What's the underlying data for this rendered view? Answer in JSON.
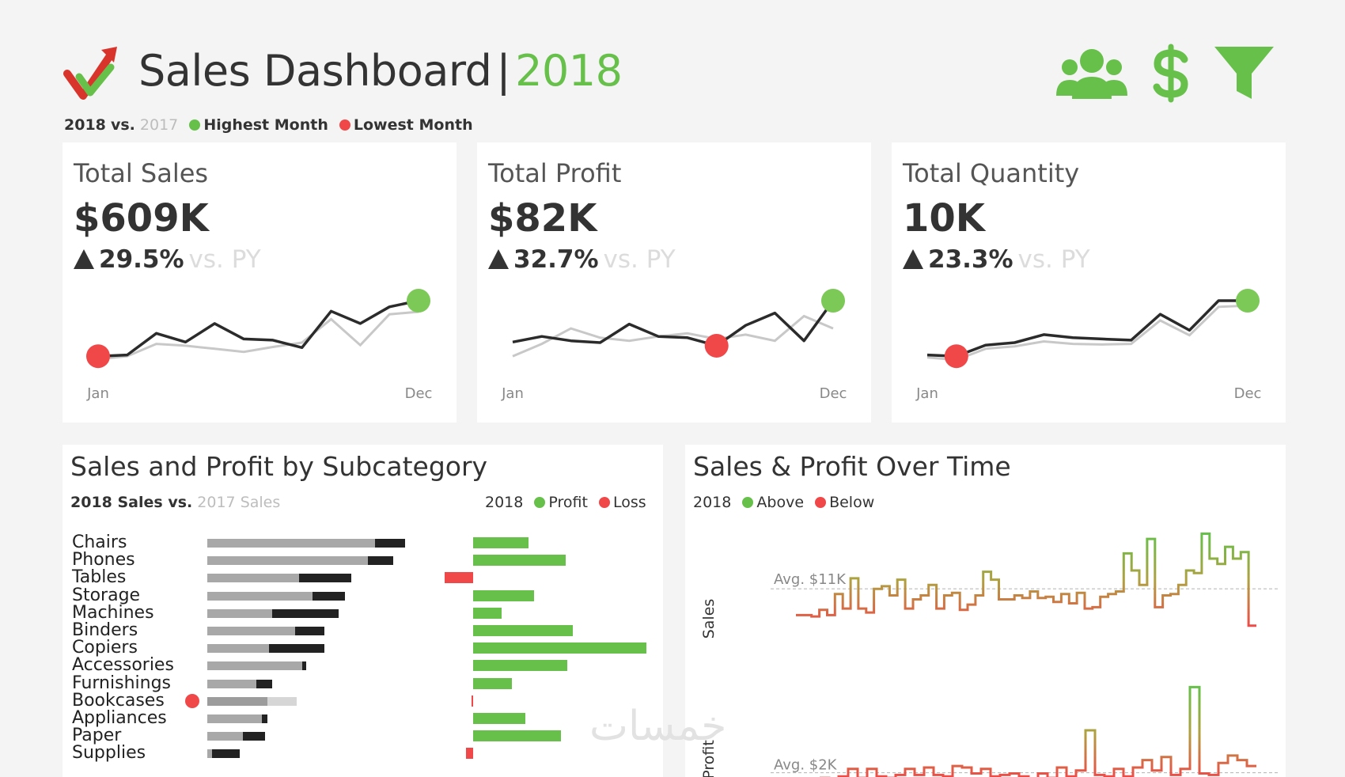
{
  "header": {
    "title": "Sales Dashboard",
    "separator": "|",
    "year": "2018",
    "logo_icon": "checkmark-arrow-logo",
    "icons": [
      "people-icon",
      "dollar-icon",
      "filter-icon"
    ]
  },
  "legend_top": {
    "current": "2018",
    "vs": "vs.",
    "previous": "2017",
    "highest": "Highest Month",
    "lowest": "Lowest Month"
  },
  "kpis": [
    {
      "title": "Total Sales",
      "value": "$609K",
      "change": "29.5%",
      "vs_label": "vs. PY",
      "axis_start": "Jan",
      "axis_end": "Dec",
      "current": [
        0.1,
        0.12,
        0.47,
        0.33,
        0.63,
        0.38,
        0.36,
        0.24,
        0.83,
        0.63,
        0.9,
        1.0
      ],
      "previous": [
        0.05,
        0.1,
        0.3,
        0.27,
        0.22,
        0.17,
        0.25,
        0.32,
        0.7,
        0.28,
        0.78,
        0.82
      ],
      "high_index": 11,
      "low_index": 0
    },
    {
      "title": "Total Profit",
      "value": "$82K",
      "change": "32.7%",
      "vs_label": "vs. PY",
      "axis_start": "Jan",
      "axis_end": "Dec",
      "current": [
        0.33,
        0.42,
        0.35,
        0.32,
        0.62,
        0.42,
        0.4,
        0.27,
        0.6,
        0.8,
        0.35,
        1.0
      ],
      "previous": [
        0.1,
        0.3,
        0.55,
        0.4,
        0.35,
        0.42,
        0.47,
        0.38,
        0.45,
        0.35,
        0.75,
        0.55
      ],
      "high_index": 11,
      "low_index": 7
    },
    {
      "title": "Total Quantity",
      "value": "10K",
      "change": "23.3%",
      "vs_label": "vs. PY",
      "axis_start": "Jan",
      "axis_end": "Dec",
      "current": [
        0.12,
        0.1,
        0.28,
        0.32,
        0.45,
        0.4,
        0.38,
        0.36,
        0.78,
        0.52,
        1.0,
        1.0
      ],
      "previous": [
        0.08,
        0.04,
        0.22,
        0.26,
        0.34,
        0.3,
        0.29,
        0.3,
        0.68,
        0.44,
        0.9,
        0.92
      ],
      "high_index": 11,
      "low_index": 1
    }
  ],
  "subcategory": {
    "title": "Sales and Profit by Subcategory",
    "legend_left_current": "2018 Sales vs.",
    "legend_left_previous": "2017 Sales",
    "legend_right_year": "2018",
    "legend_profit": "Profit",
    "legend_loss": "Loss",
    "rows": [
      {
        "name": "Chairs",
        "sales_2018": 250,
        "sales_2017": 212,
        "profit": 33
      },
      {
        "name": "Phones",
        "sales_2018": 235,
        "sales_2017": 203,
        "profit": 55
      },
      {
        "name": "Tables",
        "sales_2018": 182,
        "sales_2017": 116,
        "profit": -17
      },
      {
        "name": "Storage",
        "sales_2018": 174,
        "sales_2017": 133,
        "profit": 36
      },
      {
        "name": "Machines",
        "sales_2018": 166,
        "sales_2017": 82,
        "profit": 17
      },
      {
        "name": "Binders",
        "sales_2018": 148,
        "sales_2017": 111,
        "profit": 59
      },
      {
        "name": "Copiers",
        "sales_2018": 148,
        "sales_2017": 78,
        "profit": 103
      },
      {
        "name": "Accessories",
        "sales_2018": 125,
        "sales_2017": 120,
        "profit": 56
      },
      {
        "name": "Furnishings",
        "sales_2018": 82,
        "sales_2017": 62,
        "profit": 23
      },
      {
        "name": "Bookcases",
        "sales_2018": 76,
        "sales_2017": 113,
        "profit": -1
      },
      {
        "name": "Appliances",
        "sales_2018": 76,
        "sales_2017": 69,
        "profit": 31
      },
      {
        "name": "Paper",
        "sales_2018": 73,
        "sales_2017": 45,
        "profit": 52
      },
      {
        "name": "Supplies",
        "sales_2018": 41,
        "sales_2017": 6,
        "profit": -4
      }
    ]
  },
  "time": {
    "title": "Sales & Profit Over Time",
    "legend_year": "2018",
    "legend_above": "Above",
    "legend_below": "Below",
    "sales_axis": "Sales",
    "profit_axis": "Profit",
    "sales_avg_label": "Avg. $11K",
    "profit_avg_label": "Avg. $2K",
    "sales_series": [
      1.0,
      1.0,
      0.9,
      1.4,
      1.0,
      2.6,
      1.5,
      3.8,
      1.5,
      1.2,
      3.0,
      3.2,
      2.5,
      3.7,
      1.5,
      2.2,
      2.5,
      3.3,
      1.5,
      2.5,
      2.7,
      1.4,
      1.8,
      2.5,
      4.3,
      3.7,
      2.2,
      2.2,
      2.5,
      2.3,
      2.8,
      2.3,
      2.4,
      2.0,
      2.6,
      1.9,
      2.7,
      1.5,
      1.6,
      2.4,
      2.6,
      2.8,
      5.7,
      4.4,
      3.3,
      6.8,
      1.6,
      2.5,
      2.6,
      3.3,
      4.4,
      4.2,
      7.2,
      5.3,
      4.9,
      6.2,
      5.3,
      5.8,
      0.2
    ],
    "sales_avg": 3.0,
    "profit_series": [
      0.1,
      0.0,
      0.2,
      0.7,
      0.1,
      0.7,
      0.2,
      0.1,
      0.3,
      0.7,
      0.3,
      0.8,
      0.3,
      0.2,
      0.9,
      0.8,
      0.4,
      0.7,
      0.2,
      0.3,
      0.4,
      0.2,
      0.0,
      0.4,
      0.1,
      0.8,
      0.2,
      0.6,
      3.3,
      0.3,
      0.2,
      0.7,
      0.2,
      0.8,
      1.3,
      0.6,
      1.5,
      0.3,
      0.7,
      6.2,
      0.4,
      0.3,
      1.1,
      1.6,
      1.3,
      0.9
    ],
    "profit_avg": 0.45
  },
  "watermark": "خمسات"
}
